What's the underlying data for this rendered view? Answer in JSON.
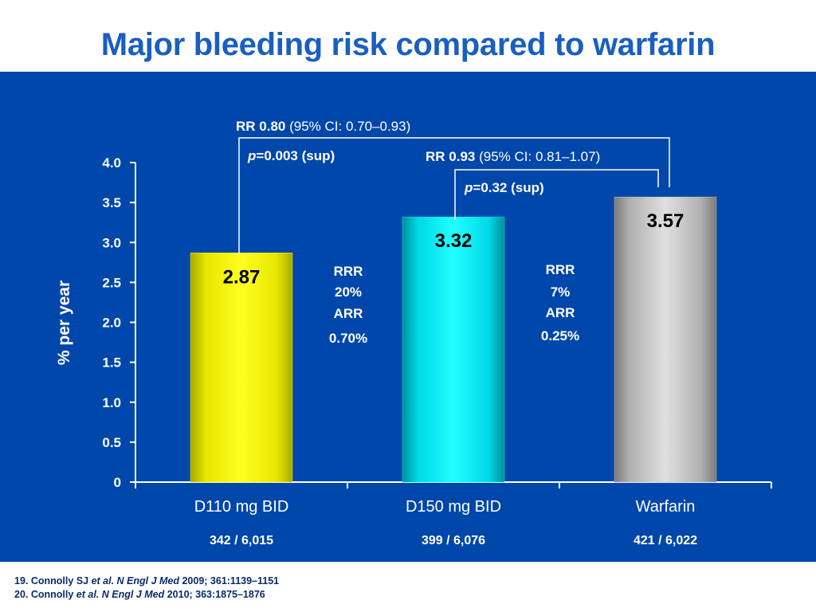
{
  "title": "Major bleeding risk compared to warfarin",
  "references": [
    {
      "num": "19. Connolly SJ ",
      "etal": "et al. N Engl J Med",
      "rest": " 2009; 361:1139–1151"
    },
    {
      "num": "20. Connolly ",
      "etal": "et al. N Engl J Med",
      "rest": " 2010;  363:1875–1876"
    }
  ],
  "chart_data": {
    "type": "bar",
    "ylabel": "% per year",
    "ylim": [
      0,
      4.0
    ],
    "yticks": [
      "0",
      "0.5",
      "1.0",
      "1.5",
      "2.0",
      "2.5",
      "3.0",
      "3.5",
      "4.0"
    ],
    "categories": [
      "D110 mg BID",
      "D150 mg BID",
      "Warfarin"
    ],
    "values": [
      2.87,
      3.32,
      3.57
    ],
    "value_labels": [
      "2.87",
      "3.32",
      "3.57"
    ],
    "events": [
      "342 / 6,015",
      "399 / 6,076",
      "421 / 6,022"
    ],
    "bar_colors": [
      "#f0f000",
      "#00e8f0",
      "#b8b8b8"
    ],
    "comparisons": [
      {
        "rr_bold": "RR 0.80",
        "rr_ci": " (95% CI: 0.70–0.93)",
        "p_italic": "p",
        "p_rest": "=0.003 (sup)"
      },
      {
        "rr_bold": "RR 0.93",
        "rr_ci": " (95% CI: 0.81–1.07)",
        "p_italic": "p",
        "p_rest": "=0.32 (sup)"
      }
    ],
    "reductions": [
      [
        "RRR",
        "20%",
        "ARR",
        "0.70%"
      ],
      [
        "RRR",
        "7%",
        "ARR",
        "0.25%"
      ]
    ]
  }
}
